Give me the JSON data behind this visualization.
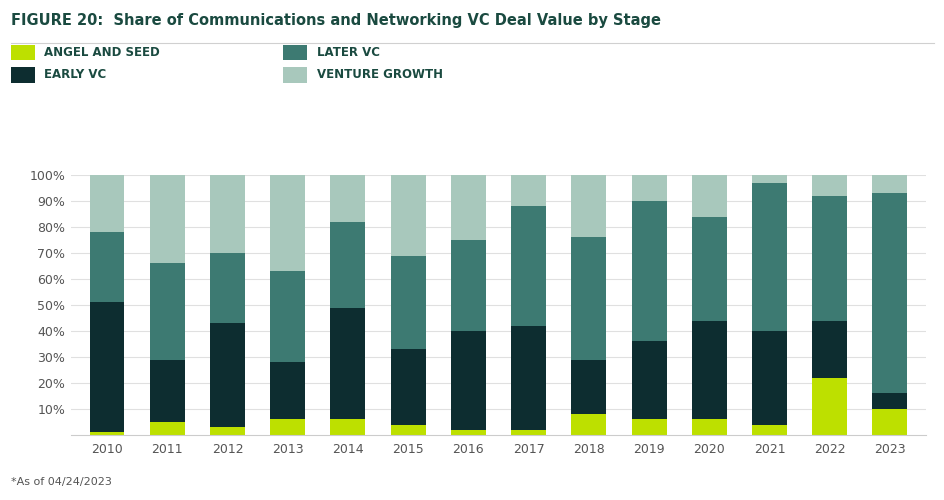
{
  "title": "FIGURE 20:  Share of Communications and Networking VC Deal Value by Stage",
  "years": [
    2010,
    2011,
    2012,
    2013,
    2014,
    2015,
    2016,
    2017,
    2018,
    2019,
    2020,
    2021,
    2022,
    2023
  ],
  "angel_and_seed": [
    1,
    5,
    3,
    6,
    6,
    4,
    2,
    2,
    8,
    6,
    6,
    4,
    22,
    10
  ],
  "early_vc": [
    50,
    24,
    40,
    22,
    43,
    29,
    38,
    40,
    21,
    30,
    38,
    36,
    22,
    6
  ],
  "later_vc": [
    27,
    37,
    27,
    35,
    33,
    36,
    35,
    46,
    47,
    54,
    40,
    57,
    48,
    77
  ],
  "venture_growth": [
    22,
    34,
    30,
    37,
    18,
    31,
    25,
    12,
    24,
    10,
    16,
    3,
    8,
    7
  ],
  "colors": {
    "angel_and_seed": "#bde000",
    "early_vc": "#0d2d30",
    "later_vc": "#3d7a72",
    "venture_growth": "#a8c8bc"
  },
  "legend_labels": {
    "angel_and_seed": "ANGEL AND SEED",
    "early_vc": "EARLY VC",
    "later_vc": "LATER VC",
    "venture_growth": "VENTURE GROWTH"
  },
  "footnote": "*As of 04/24/2023",
  "ylim": [
    0,
    100
  ],
  "background_color": "#ffffff",
  "title_color": "#1a4a40",
  "label_color": "#1a4a40",
  "tick_color": "#555555",
  "grid_color": "#e0e0e0",
  "spine_color": "#cccccc"
}
